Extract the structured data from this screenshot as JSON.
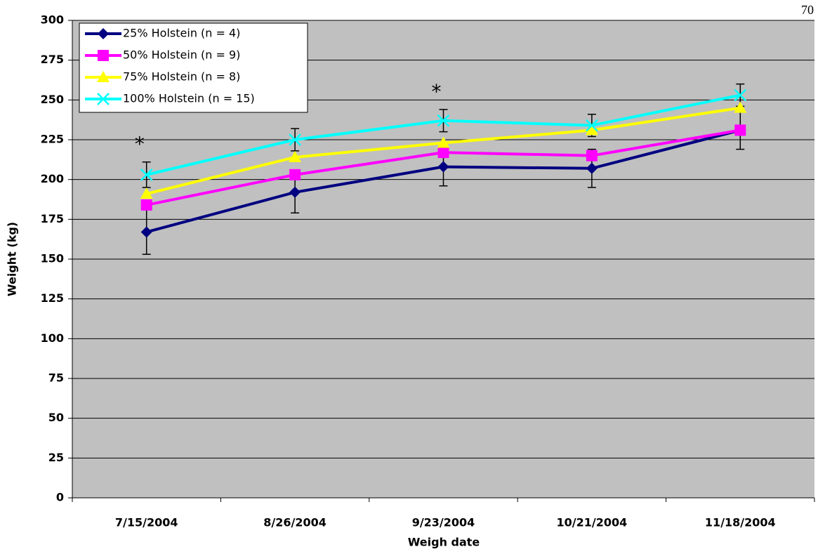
{
  "page_number": "70",
  "chart_data": {
    "type": "line",
    "x_label": "Weigh date",
    "y_label": "Weight (kg)",
    "categories": [
      "7/15/2004",
      "8/26/2004",
      "9/23/2004",
      "10/21/2004",
      "11/18/2004"
    ],
    "ylim": [
      0,
      300
    ],
    "yticks": [
      0,
      25,
      50,
      75,
      100,
      125,
      150,
      175,
      200,
      225,
      250,
      275,
      300
    ],
    "grid": true,
    "legend": "top-left",
    "series": [
      {
        "name": "25% Holstein (n = 4)",
        "color": "#000080",
        "marker": "diamond",
        "values": [
          167,
          192,
          208,
          207,
          231
        ],
        "errors": [
          14,
          13,
          12,
          12,
          12
        ]
      },
      {
        "name": "50% Holstein (n = 9)",
        "color": "#ff00ff",
        "marker": "square",
        "values": [
          184,
          203,
          217,
          215,
          231
        ]
      },
      {
        "name": "75% Holstein (n = 8)",
        "color": "#ffff00",
        "marker": "triangle",
        "values": [
          191,
          214,
          223,
          231,
          245
        ]
      },
      {
        "name": "100% Holstein (n = 15)",
        "color": "#00ffff",
        "marker": "x",
        "values": [
          203,
          225,
          237,
          234,
          253
        ],
        "errors": [
          8,
          7,
          7,
          7,
          7
        ]
      }
    ],
    "annotations": [
      {
        "text": "*",
        "x": "7/15/2004"
      },
      {
        "text": "*",
        "x": "8/26/2004"
      },
      {
        "text": "*",
        "x": "9/23/2004"
      }
    ]
  }
}
